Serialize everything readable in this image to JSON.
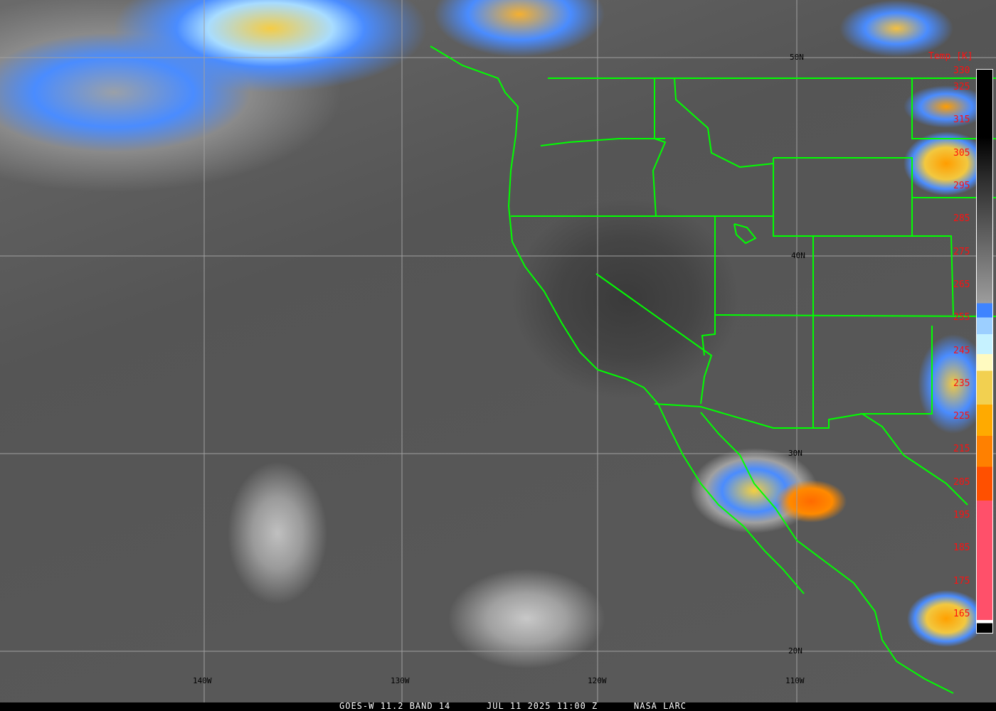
{
  "footer": {
    "satellite": "GOES-W 11.2 BAND 14",
    "datetime": "JUL 11 2025 11:00 Z",
    "credit": "NASA LARC"
  },
  "grid": {
    "lat_labels": [
      "50N",
      "40N",
      "30N",
      "20N"
    ],
    "lon_labels": [
      "140W",
      "130W",
      "120W",
      "110W"
    ]
  },
  "colorbar": {
    "title": "Temp [K]",
    "ticks": [
      "330",
      "325",
      "315",
      "305",
      "295",
      "285",
      "275",
      "265",
      "255",
      "245",
      "235",
      "225",
      "215",
      "205",
      "195",
      "185",
      "175",
      "165"
    ],
    "range_k": [
      165,
      330
    ]
  },
  "colors": {
    "border_lines": "#00ff00",
    "grid_lines": "#a0a0a0",
    "tick_text": "#ff1010"
  }
}
